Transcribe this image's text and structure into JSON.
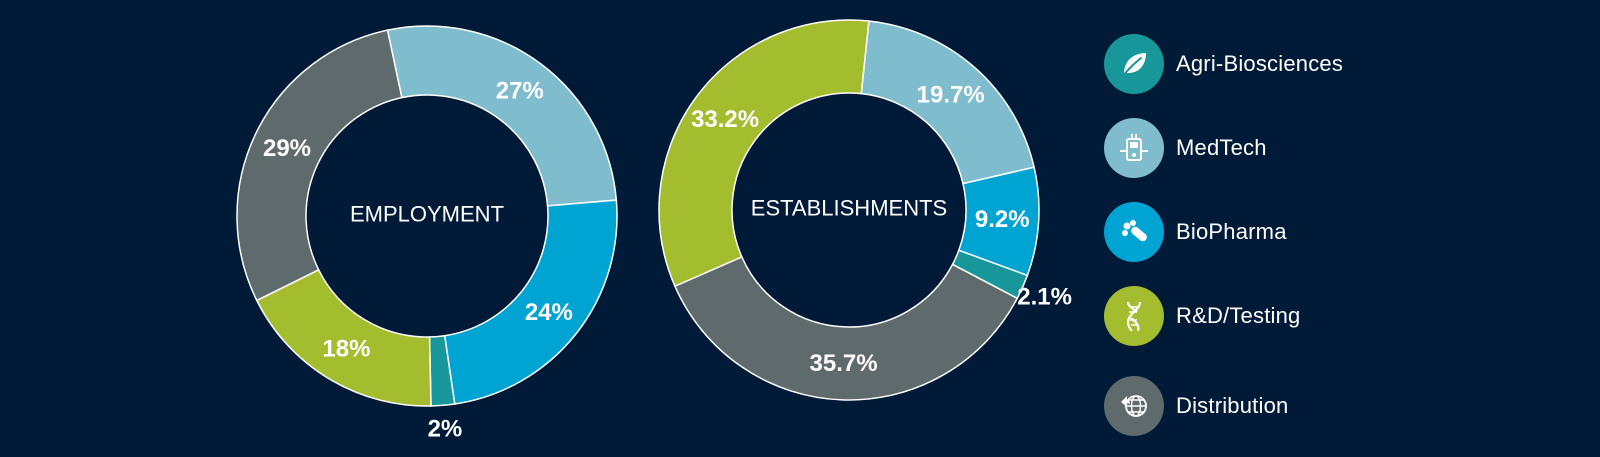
{
  "colors": {
    "background": "#001a38",
    "Agri-Biosciences": "#17979a",
    "MedTech": "#7fbcce",
    "BioPharma": "#00a4d3",
    "R&D/Testing": "#a3bd2e",
    "Distribution": "#5f6a6d"
  },
  "legend": {
    "items": [
      {
        "label": "Agri-Biosciences",
        "icon": "leaf-icon",
        "color": "#17979a"
      },
      {
        "label": "MedTech",
        "icon": "medical-device-icon",
        "color": "#7fbcce"
      },
      {
        "label": "BioPharma",
        "icon": "pills-icon",
        "color": "#00a4d3"
      },
      {
        "label": "R&D/Testing",
        "icon": "dna-icon",
        "color": "#a3bd2e"
      },
      {
        "label": "Distribution",
        "icon": "globe-arrow-icon",
        "color": "#5f6a6d"
      }
    ]
  },
  "chart_data": [
    {
      "type": "pie",
      "variant": "donut",
      "title": "EMPLOYMENT",
      "categories": [
        "MedTech",
        "BioPharma",
        "Agri-Biosciences",
        "R&D/Testing",
        "Distribution"
      ],
      "values": [
        27,
        24,
        2,
        18,
        29
      ],
      "labels": [
        "27%",
        "24%",
        "2%",
        "18%",
        "29%"
      ],
      "start_category": "MedTech",
      "direction": "clockwise"
    },
    {
      "type": "pie",
      "variant": "donut",
      "title": "ESTABLISHMENTS",
      "categories": [
        "MedTech",
        "BioPharma",
        "Agri-Biosciences",
        "Distribution",
        "R&D/Testing"
      ],
      "values": [
        19.7,
        9.2,
        2.1,
        35.7,
        33.2
      ],
      "labels": [
        "19.7%",
        "9.2%",
        "2.1%",
        "35.7%",
        "33.2%"
      ],
      "start_category": "MedTech",
      "direction": "clockwise"
    }
  ]
}
